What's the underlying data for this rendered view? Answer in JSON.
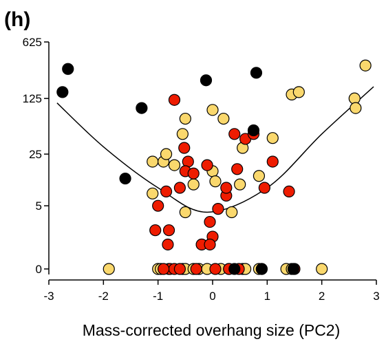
{
  "chart_data": {
    "type": "scatter",
    "panel_label": "(h)",
    "title": "",
    "xlabel": "Mass-corrected overhang size (PC2)",
    "ylabel": "",
    "xlim": [
      -3,
      3
    ],
    "y_axis_ticks": [
      "0",
      "5",
      "25",
      "125",
      "625"
    ],
    "x_axis_ticks": [
      "-3",
      "-2",
      "-1",
      "0",
      "1",
      "2",
      "3"
    ],
    "y_scale": "log(y+1)",
    "grid": false,
    "legend": "none",
    "colors": {
      "black": "#000000",
      "red": "#ee1c00",
      "yellow": "#fad86d",
      "outline": "#000000",
      "curve": "#000000"
    },
    "fit_curve": {
      "type": "quadratic",
      "vertex_x": -0.1,
      "vertex_y": 4,
      "points": [
        [
          -2.85,
          110
        ],
        [
          -2,
          31
        ],
        [
          -1,
          9
        ],
        [
          -0.1,
          4
        ],
        [
          1,
          9
        ],
        [
          2,
          45
        ],
        [
          2.95,
          175
        ]
      ]
    },
    "series": [
      {
        "color": "black",
        "points": [
          [
            -2.65,
            290
          ],
          [
            -2.75,
            150
          ],
          [
            -1.6,
            12
          ],
          [
            -1.3,
            95
          ],
          [
            -0.12,
            210
          ],
          [
            0.8,
            260
          ],
          [
            0.75,
            50
          ],
          [
            0.9,
            0
          ],
          [
            1.48,
            0
          ],
          [
            0.4,
            0
          ]
        ]
      },
      {
        "color": "red",
        "points": [
          [
            -0.7,
            120
          ],
          [
            -0.52,
            30
          ],
          [
            -0.45,
            20
          ],
          [
            -0.5,
            15
          ],
          [
            -0.35,
            14
          ],
          [
            -0.6,
            9
          ],
          [
            -0.85,
            8
          ],
          [
            -1.0,
            5
          ],
          [
            -1.05,
            2
          ],
          [
            -0.8,
            2
          ],
          [
            -0.82,
            1
          ],
          [
            -0.8,
            0
          ],
          [
            -0.78,
            0
          ],
          [
            -0.1,
            18
          ],
          [
            0.1,
            4.5
          ],
          [
            0.25,
            7
          ],
          [
            -0.05,
            2.8
          ],
          [
            0.0,
            1.5
          ],
          [
            -0.2,
            1
          ],
          [
            0.25,
            9
          ],
          [
            0.4,
            45
          ],
          [
            0.45,
            16
          ],
          [
            0.6,
            39
          ],
          [
            0.75,
            45
          ],
          [
            0.95,
            9
          ],
          [
            1.1,
            20
          ],
          [
            1.4,
            8
          ],
          [
            -0.7,
            0
          ],
          [
            -0.6,
            0
          ],
          [
            -0.9,
            0
          ],
          [
            -0.3,
            0
          ],
          [
            0.05,
            0
          ],
          [
            0.3,
            0
          ],
          [
            0.48,
            0
          ],
          [
            1.5,
            0
          ],
          [
            -0.05,
            1
          ]
        ]
      },
      {
        "color": "yellow",
        "points": [
          [
            -1.9,
            0
          ],
          [
            -1.1,
            20
          ],
          [
            -1.1,
            7.5
          ],
          [
            -0.9,
            20
          ],
          [
            -0.85,
            25
          ],
          [
            -0.7,
            18
          ],
          [
            -0.5,
            70
          ],
          [
            -0.55,
            45
          ],
          [
            -0.5,
            4
          ],
          [
            -0.35,
            10
          ],
          [
            -0.2,
            1
          ],
          [
            0.0,
            90
          ],
          [
            0.2,
            70
          ],
          [
            0.0,
            15
          ],
          [
            0.05,
            11
          ],
          [
            0.35,
            4
          ],
          [
            0.5,
            10
          ],
          [
            0.55,
            30
          ],
          [
            0.85,
            13
          ],
          [
            1.1,
            40
          ],
          [
            1.45,
            140
          ],
          [
            1.58,
            150
          ],
          [
            2.6,
            125
          ],
          [
            2.62,
            95
          ],
          [
            2.8,
            320
          ],
          [
            2.0,
            0
          ],
          [
            -1.0,
            0
          ],
          [
            -0.95,
            0
          ],
          [
            -0.55,
            0
          ],
          [
            -0.5,
            0
          ],
          [
            -0.35,
            0
          ],
          [
            -0.25,
            0
          ],
          [
            -0.1,
            0
          ],
          [
            0.15,
            0
          ],
          [
            0.3,
            0
          ],
          [
            0.55,
            0
          ],
          [
            0.6,
            0
          ],
          [
            0.85,
            0
          ],
          [
            0.9,
            0
          ],
          [
            1.35,
            0
          ],
          [
            1.45,
            0
          ]
        ]
      }
    ]
  }
}
